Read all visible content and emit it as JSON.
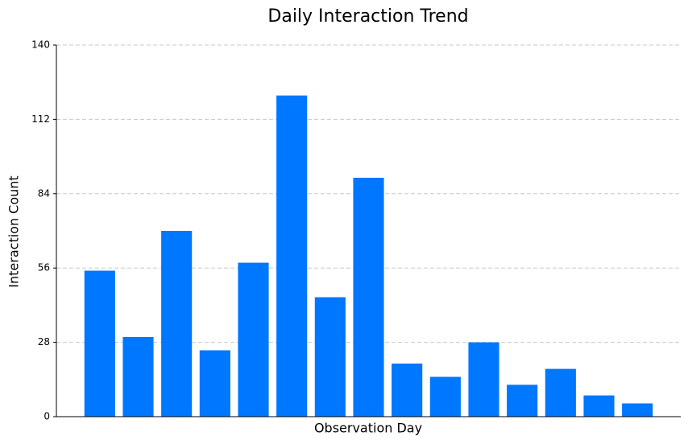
{
  "chart_data": {
    "type": "bar",
    "title": "Daily Interaction Trend",
    "x_label": "Observation Day",
    "y_label": "Interaction Count",
    "categories": [
      null,
      null,
      null,
      null,
      null,
      null,
      null,
      null,
      null,
      null,
      null,
      null,
      null,
      null,
      null
    ],
    "values": [
      55,
      30,
      70,
      25,
      58,
      121,
      45,
      90,
      20,
      15,
      28,
      12,
      18,
      8,
      5
    ],
    "color": "#0077ff",
    "ylim": [
      0,
      140
    ],
    "yticks": [
      0,
      28,
      56,
      84,
      112,
      140
    ],
    "grid": true
  }
}
